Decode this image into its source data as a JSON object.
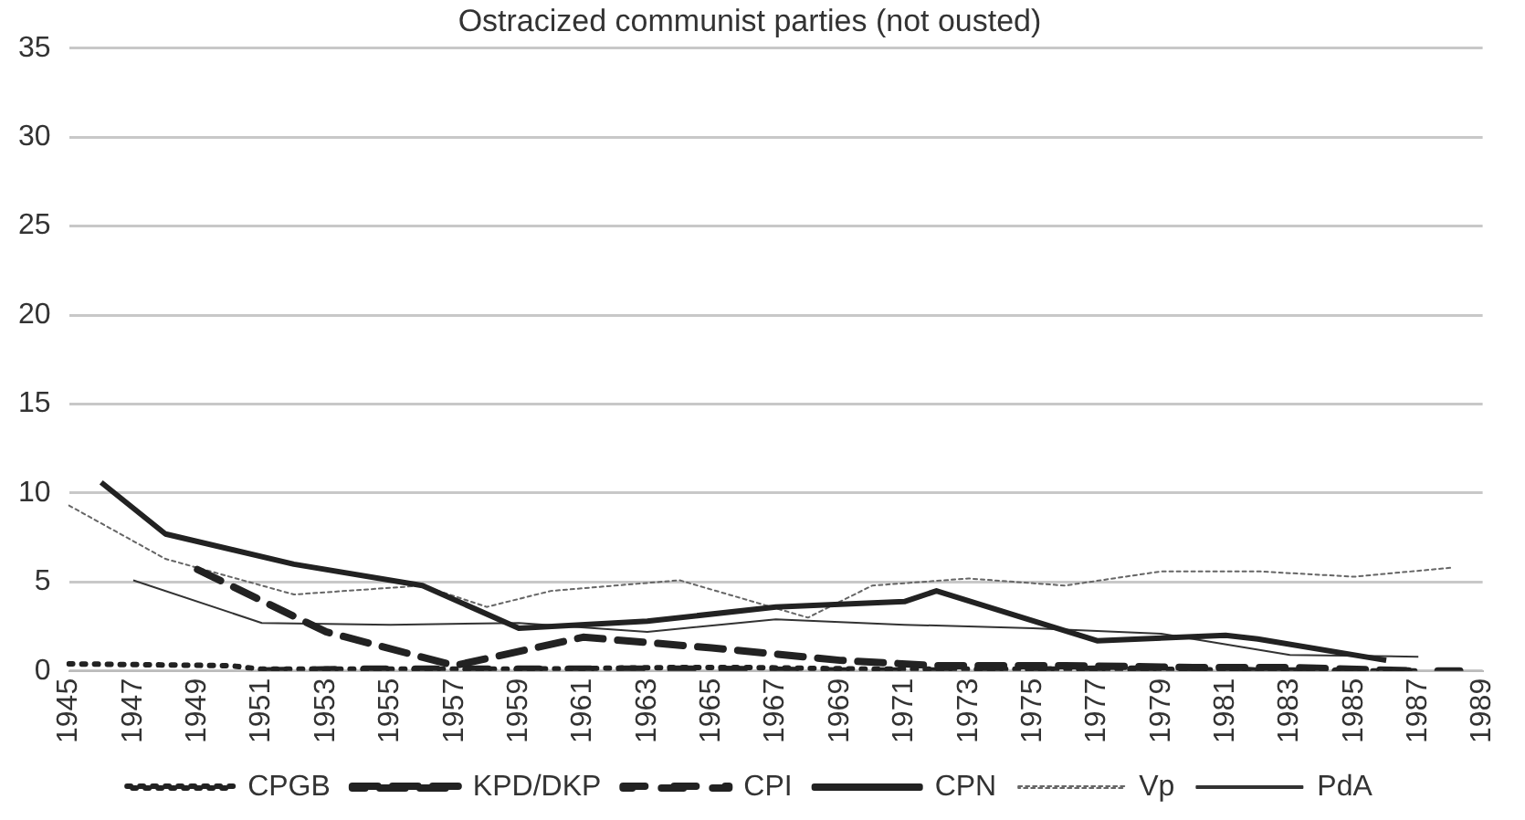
{
  "chart_data": {
    "type": "line",
    "title": "Ostracized communist parties (not ousted)",
    "categories": [
      "1945",
      null,
      "1947",
      null,
      "1949",
      null,
      "1951",
      null,
      "1953",
      null,
      "1955",
      null,
      "1957",
      null,
      "1959",
      null,
      "1961",
      null,
      "1963",
      null,
      "1965",
      null,
      "1967",
      null,
      "1969",
      null,
      "1971",
      null,
      "1973",
      null,
      "1975",
      null,
      "1977",
      null,
      "1979",
      null,
      "1981",
      null,
      "1983",
      null,
      "1985",
      null,
      "1987",
      null,
      "1989"
    ],
    "series": [
      {
        "name": "CPGB",
        "color": "#222222",
        "line_style": "dotted",
        "values": [
          0.4,
          null,
          null,
          null,
          null,
          0.3,
          0.1,
          null,
          null,
          null,
          0.1,
          null,
          null,
          null,
          0.1,
          null,
          null,
          null,
          null,
          0.2,
          null,
          0.2,
          null,
          null,
          null,
          0.1,
          null,
          null,
          null,
          0.1,
          null,
          null,
          null,
          null,
          0.1,
          null,
          null,
          null,
          0,
          null,
          null,
          null,
          0,
          null,
          null
        ]
      },
      {
        "name": "KPD/DKP",
        "color": "#222222",
        "line_style": "dashed",
        "values": [
          null,
          null,
          null,
          null,
          5.7,
          null,
          null,
          null,
          2.2,
          null,
          null,
          null,
          0.3,
          null,
          null,
          null,
          1.9,
          null,
          null,
          null,
          1.3,
          null,
          null,
          null,
          0.6,
          null,
          null,
          0.3,
          null,
          null,
          null,
          0.3,
          null,
          null,
          null,
          0.2,
          null,
          null,
          0.2,
          null,
          null,
          null,
          0,
          null,
          null
        ]
      },
      {
        "name": "CPI",
        "color": "#222222",
        "line_style": "dashed",
        "values": [
          null,
          null,
          null,
          null,
          null,
          null,
          0,
          null,
          null,
          0.1,
          null,
          null,
          0.1,
          null,
          null,
          null,
          0.1,
          null,
          null,
          null,
          0.1,
          null,
          null,
          null,
          0,
          null,
          null,
          null,
          0,
          null,
          null,
          null,
          0.1,
          null,
          null,
          null,
          0.1,
          0,
          null,
          null,
          null,
          null,
          0,
          null,
          0
        ]
      },
      {
        "name": "CPN",
        "color": "#222222",
        "line_style": "solid",
        "values": [
          null,
          10.6,
          null,
          7.7,
          null,
          null,
          null,
          6.0,
          null,
          null,
          null,
          4.8,
          null,
          null,
          2.4,
          null,
          null,
          null,
          2.8,
          null,
          null,
          null,
          3.6,
          null,
          null,
          null,
          3.9,
          4.5,
          null,
          null,
          null,
          null,
          1.7,
          null,
          null,
          null,
          2.0,
          1.8,
          null,
          null,
          null,
          0.6,
          null,
          null,
          null
        ]
      },
      {
        "name": "Vp",
        "color": "#666666",
        "line_style": "dotted",
        "values": [
          9.3,
          null,
          null,
          6.3,
          null,
          null,
          null,
          4.3,
          null,
          null,
          null,
          4.8,
          null,
          3.6,
          null,
          4.5,
          null,
          null,
          null,
          5.1,
          null,
          null,
          null,
          3.0,
          null,
          4.8,
          null,
          null,
          5.2,
          null,
          null,
          4.8,
          null,
          null,
          5.6,
          null,
          null,
          5.6,
          null,
          null,
          5.3,
          null,
          null,
          5.8,
          null
        ]
      },
      {
        "name": "PdA",
        "color": "#333333",
        "line_style": "solid",
        "values": [
          null,
          null,
          5.1,
          null,
          null,
          null,
          2.7,
          null,
          null,
          null,
          2.6,
          null,
          null,
          null,
          2.7,
          null,
          null,
          null,
          2.2,
          null,
          null,
          null,
          2.9,
          null,
          null,
          null,
          2.6,
          null,
          null,
          null,
          2.4,
          null,
          null,
          null,
          2.1,
          null,
          null,
          null,
          0.9,
          null,
          null,
          null,
          0.8,
          null,
          null
        ]
      }
    ],
    "ylim": [
      0,
      35
    ],
    "yticks": [
      0,
      5,
      10,
      15,
      20,
      25,
      30,
      35
    ],
    "grid": "y",
    "legend": "bottom",
    "marker": "none"
  }
}
